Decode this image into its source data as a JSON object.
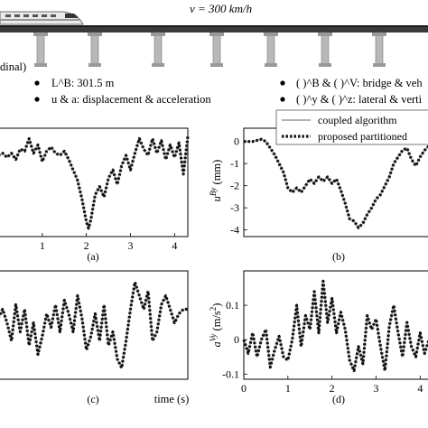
{
  "header": {
    "speed_label": "v = 300 km/h",
    "cut_label": "dinal)",
    "bullets": [
      "L^B: 301.5 m",
      "u & a: displacement & acceleration",
      "( )^B & ( )^V: bridge & veh",
      "( )^y & ( )^z: lateral & verti"
    ]
  },
  "legend": {
    "items": [
      {
        "label": "coupled algorithm",
        "color": "#9a9a9a",
        "style": "solid"
      },
      {
        "label": "proposed partitioned",
        "color": "#111111",
        "style": "dotted"
      }
    ]
  },
  "chart_data": [
    {
      "id": "a",
      "type": "line",
      "panel_label": "(a)",
      "xlim": [
        0,
        4.3
      ],
      "xticks": [
        1,
        2,
        3,
        4
      ],
      "ylabel": "",
      "yticks": [],
      "series": [
        {
          "name": "coupled algorithm",
          "x": [
            0.0,
            0.1,
            0.2,
            0.3,
            0.4,
            0.5,
            0.6,
            0.7,
            0.8,
            0.9,
            1.0,
            1.1,
            1.2,
            1.3,
            1.4,
            1.5,
            1.6,
            1.7,
            1.8,
            1.9,
            2.0,
            2.05,
            2.1,
            2.2,
            2.3,
            2.4,
            2.5,
            2.6,
            2.7,
            2.8,
            2.9,
            3.0,
            3.1,
            3.2,
            3.3,
            3.4,
            3.5,
            3.6,
            3.7,
            3.8,
            3.9,
            4.0,
            4.1,
            4.2,
            4.3
          ],
          "y": [
            0.1,
            0.2,
            0.0,
            0.2,
            -0.1,
            0.4,
            0.3,
            0.9,
            0.2,
            0.6,
            -0.2,
            0.3,
            0.5,
            0.2,
            0.1,
            0.3,
            -0.1,
            -0.6,
            -1.1,
            -2.0,
            -3.1,
            -3.4,
            -3.0,
            -1.8,
            -1.4,
            -1.9,
            -1.0,
            -0.6,
            -1.3,
            -0.4,
            0.1,
            -0.6,
            0.2,
            0.9,
            0.4,
            0.1,
            0.9,
            0.2,
            0.8,
            -0.1,
            0.6,
            0.0,
            0.7,
            -0.8,
            1.0
          ]
        },
        {
          "name": "proposed partitioned",
          "x": [
            0.0,
            0.1,
            0.2,
            0.3,
            0.4,
            0.5,
            0.6,
            0.7,
            0.8,
            0.9,
            1.0,
            1.1,
            1.2,
            1.3,
            1.4,
            1.5,
            1.6,
            1.7,
            1.8,
            1.9,
            2.0,
            2.05,
            2.1,
            2.2,
            2.3,
            2.4,
            2.5,
            2.6,
            2.7,
            2.8,
            2.9,
            3.0,
            3.1,
            3.2,
            3.3,
            3.4,
            3.5,
            3.6,
            3.7,
            3.8,
            3.9,
            4.0,
            4.1,
            4.2,
            4.3
          ],
          "y": [
            0.1,
            0.2,
            0.0,
            0.2,
            -0.1,
            0.4,
            0.3,
            0.9,
            0.2,
            0.6,
            -0.2,
            0.3,
            0.5,
            0.2,
            0.1,
            0.3,
            -0.1,
            -0.6,
            -1.1,
            -2.0,
            -3.1,
            -3.4,
            -3.0,
            -1.8,
            -1.4,
            -1.9,
            -1.0,
            -0.6,
            -1.3,
            -0.4,
            0.1,
            -0.6,
            0.2,
            0.9,
            0.4,
            0.1,
            0.9,
            0.2,
            0.8,
            -0.1,
            0.6,
            0.0,
            0.7,
            -0.8,
            1.0
          ]
        }
      ]
    },
    {
      "id": "b",
      "type": "line",
      "panel_label": "(b)",
      "xlim": [
        0,
        4.3
      ],
      "xticks": [],
      "ylim": [
        -4.3,
        0.6
      ],
      "yticks": [
        0,
        -1,
        -2,
        -3,
        -4
      ],
      "ylabel": "u^{By} (mm)",
      "series": [
        {
          "name": "coupled algorithm",
          "x": [
            0.0,
            0.2,
            0.4,
            0.5,
            0.6,
            0.7,
            0.8,
            0.9,
            1.0,
            1.1,
            1.2,
            1.3,
            1.4,
            1.5,
            1.6,
            1.7,
            1.8,
            1.9,
            2.0,
            2.1,
            2.2,
            2.3,
            2.4,
            2.5,
            2.6,
            2.7,
            2.8,
            2.9,
            3.0,
            3.1,
            3.2,
            3.3,
            3.4,
            3.5,
            3.6,
            3.7,
            3.8,
            3.9,
            4.0,
            4.1,
            4.2,
            4.3
          ],
          "y": [
            0.0,
            0.0,
            0.1,
            0.0,
            -0.3,
            -0.6,
            -1.0,
            -1.4,
            -2.1,
            -2.3,
            -2.1,
            -2.3,
            -2.0,
            -1.7,
            -1.9,
            -1.6,
            -1.8,
            -1.6,
            -1.9,
            -1.7,
            -2.2,
            -2.8,
            -3.5,
            -3.6,
            -3.9,
            -3.7,
            -3.3,
            -3.0,
            -2.6,
            -2.4,
            -2.0,
            -1.6,
            -1.0,
            -0.7,
            -0.4,
            -0.3,
            -0.8,
            -1.1,
            -0.7,
            -0.4,
            -0.2,
            0.0
          ]
        },
        {
          "name": "proposed partitioned",
          "x": [
            0.0,
            0.2,
            0.4,
            0.5,
            0.6,
            0.7,
            0.8,
            0.9,
            1.0,
            1.1,
            1.2,
            1.3,
            1.4,
            1.5,
            1.6,
            1.7,
            1.8,
            1.9,
            2.0,
            2.1,
            2.2,
            2.3,
            2.4,
            2.5,
            2.6,
            2.7,
            2.8,
            2.9,
            3.0,
            3.1,
            3.2,
            3.3,
            3.4,
            3.5,
            3.6,
            3.7,
            3.8,
            3.9,
            4.0,
            4.1,
            4.2,
            4.3
          ],
          "y": [
            0.0,
            0.0,
            0.1,
            0.0,
            -0.3,
            -0.6,
            -1.0,
            -1.4,
            -2.1,
            -2.3,
            -2.1,
            -2.3,
            -2.0,
            -1.7,
            -1.9,
            -1.6,
            -1.8,
            -1.6,
            -1.9,
            -1.7,
            -2.2,
            -2.8,
            -3.5,
            -3.6,
            -3.9,
            -3.7,
            -3.3,
            -3.0,
            -2.6,
            -2.4,
            -2.0,
            -1.6,
            -1.0,
            -0.7,
            -0.4,
            -0.3,
            -0.8,
            -1.1,
            -0.7,
            -0.4,
            -0.2,
            0.0
          ]
        }
      ]
    },
    {
      "id": "c",
      "type": "line",
      "panel_label": "(c)",
      "xlim": [
        0,
        4.3
      ],
      "xticks": [],
      "xlabel": "time (s)",
      "ylabel": "",
      "yticks": [],
      "series": [
        {
          "name": "coupled algorithm",
          "x": [
            0.0,
            0.1,
            0.2,
            0.3,
            0.4,
            0.5,
            0.6,
            0.7,
            0.8,
            0.9,
            1.0,
            1.1,
            1.2,
            1.3,
            1.4,
            1.5,
            1.6,
            1.7,
            1.8,
            1.9,
            2.0,
            2.1,
            2.2,
            2.3,
            2.4,
            2.5,
            2.6,
            2.7,
            2.8,
            2.9,
            3.0,
            3.1,
            3.2,
            3.3,
            3.4,
            3.5,
            3.6,
            3.7,
            3.8,
            3.9,
            4.0,
            4.1,
            4.2,
            4.3
          ],
          "y": [
            0.1,
            0.3,
            0.0,
            -0.4,
            0.4,
            -0.2,
            0.3,
            -0.5,
            0.0,
            -0.7,
            -0.3,
            0.2,
            -0.1,
            0.4,
            -0.2,
            0.5,
            0.2,
            -0.2,
            0.6,
            0.1,
            -0.6,
            -0.3,
            0.2,
            -0.4,
            0.4,
            -0.5,
            -0.2,
            -0.8,
            -1.0,
            -0.4,
            0.3,
            0.9,
            0.6,
            0.3,
            0.7,
            -0.4,
            -0.2,
            0.4,
            0.6,
            0.3,
            0.0,
            0.2,
            0.3,
            0.3
          ]
        },
        {
          "name": "proposed partitioned",
          "x": [
            0.0,
            0.1,
            0.2,
            0.3,
            0.4,
            0.5,
            0.6,
            0.7,
            0.8,
            0.9,
            1.0,
            1.1,
            1.2,
            1.3,
            1.4,
            1.5,
            1.6,
            1.7,
            1.8,
            1.9,
            2.0,
            2.1,
            2.2,
            2.3,
            2.4,
            2.5,
            2.6,
            2.7,
            2.8,
            2.9,
            3.0,
            3.1,
            3.2,
            3.3,
            3.4,
            3.5,
            3.6,
            3.7,
            3.8,
            3.9,
            4.0,
            4.1,
            4.2,
            4.3
          ],
          "y": [
            0.1,
            0.3,
            0.0,
            -0.4,
            0.4,
            -0.2,
            0.3,
            -0.5,
            0.0,
            -0.7,
            -0.3,
            0.2,
            -0.1,
            0.4,
            -0.2,
            0.5,
            0.2,
            -0.2,
            0.6,
            0.1,
            -0.6,
            -0.3,
            0.2,
            -0.4,
            0.4,
            -0.5,
            -0.2,
            -0.8,
            -1.0,
            -0.4,
            0.3,
            0.9,
            0.6,
            0.3,
            0.7,
            -0.4,
            -0.2,
            0.4,
            0.6,
            0.3,
            0.0,
            0.2,
            0.3,
            0.3
          ]
        }
      ]
    },
    {
      "id": "d",
      "type": "line",
      "panel_label": "(d)",
      "xlim": [
        0,
        4.3
      ],
      "xticks": [
        0,
        1,
        2,
        3,
        4
      ],
      "ylim": [
        -0.115,
        0.2
      ],
      "yticks": [
        0.1,
        0,
        -0.1
      ],
      "ylabel": "a^{Vy} (m/s^2)",
      "series": [
        {
          "name": "coupled algorithm",
          "x": [
            0.0,
            0.1,
            0.2,
            0.3,
            0.4,
            0.5,
            0.6,
            0.7,
            0.8,
            0.9,
            1.0,
            1.1,
            1.2,
            1.3,
            1.4,
            1.5,
            1.6,
            1.7,
            1.8,
            1.9,
            2.0,
            2.1,
            2.2,
            2.3,
            2.4,
            2.5,
            2.6,
            2.7,
            2.8,
            2.9,
            3.0,
            3.1,
            3.2,
            3.3,
            3.4,
            3.5,
            3.6,
            3.7,
            3.8,
            3.9,
            4.0,
            4.1,
            4.2,
            4.3
          ],
          "y": [
            0.0,
            -0.04,
            0.02,
            -0.05,
            0.0,
            0.03,
            -0.08,
            -0.03,
            0.01,
            -0.05,
            -0.06,
            0.0,
            0.1,
            -0.02,
            0.07,
            0.03,
            0.14,
            0.02,
            0.17,
            0.05,
            0.12,
            0.02,
            0.08,
            0.03,
            -0.06,
            -0.09,
            -0.02,
            -0.07,
            0.07,
            0.03,
            0.06,
            -0.02,
            -0.09,
            0.04,
            0.1,
            0.02,
            -0.05,
            0.05,
            -0.02,
            -0.05,
            0.02,
            -0.04,
            0.0,
            0.02
          ]
        },
        {
          "name": "proposed partitioned",
          "x": [
            0.0,
            0.1,
            0.2,
            0.3,
            0.4,
            0.5,
            0.6,
            0.7,
            0.8,
            0.9,
            1.0,
            1.1,
            1.2,
            1.3,
            1.4,
            1.5,
            1.6,
            1.7,
            1.8,
            1.9,
            2.0,
            2.1,
            2.2,
            2.3,
            2.4,
            2.5,
            2.6,
            2.7,
            2.8,
            2.9,
            3.0,
            3.1,
            3.2,
            3.3,
            3.4,
            3.5,
            3.6,
            3.7,
            3.8,
            3.9,
            4.0,
            4.1,
            4.2,
            4.3
          ],
          "y": [
            0.0,
            -0.04,
            0.02,
            -0.05,
            0.0,
            0.03,
            -0.08,
            -0.03,
            0.01,
            -0.05,
            -0.06,
            0.0,
            0.1,
            -0.02,
            0.07,
            0.03,
            0.14,
            0.02,
            0.17,
            0.05,
            0.12,
            0.02,
            0.08,
            0.03,
            -0.06,
            -0.09,
            -0.02,
            -0.07,
            0.07,
            0.03,
            0.06,
            -0.02,
            -0.09,
            0.04,
            0.1,
            0.02,
            -0.05,
            0.05,
            -0.02,
            -0.05,
            0.02,
            -0.04,
            0.0,
            0.02
          ]
        }
      ]
    }
  ]
}
